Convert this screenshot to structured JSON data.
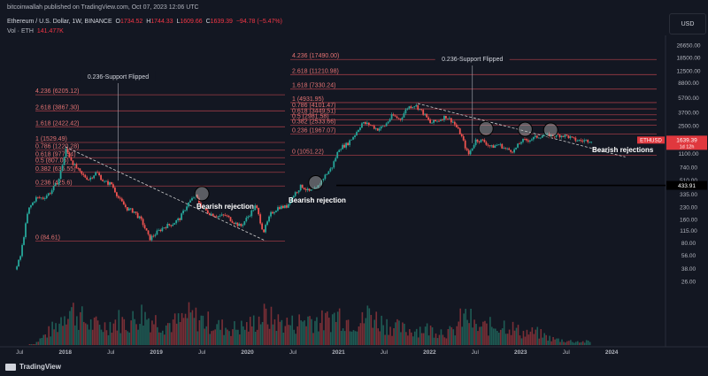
{
  "header": {
    "publish_line": "bitcoinwallah published on TradingView.com, Oct 07, 2023 12:06 UTC",
    "symbol": "Ethereum / U.S. Dollar, 1W, BINANCE",
    "ohlc": {
      "o_label": "O",
      "o": "1734.52",
      "h_label": "H",
      "h": "1744.33",
      "l_label": "L",
      "l": "1609.66",
      "c_label": "C",
      "c": "1639.39",
      "change": "−94.78 (−5.47%)"
    },
    "volume_label": "Vol · ETH",
    "volume_value": "141.477K"
  },
  "currency_button": "USD",
  "brand": "TradingView",
  "colors": {
    "background": "#131722",
    "up": "#26a69a",
    "down": "#ef5350",
    "fib_line": "#9c3b44",
    "fib_text": "#e57373",
    "price_badge": "#e0383e",
    "level_badge": "#000000"
  },
  "chart_data": {
    "type": "candlestick",
    "symbol": "ETHUSD",
    "timeframe": "1W",
    "y_scale": "log",
    "y_ticks": [
      26650.0,
      18500.0,
      12500.0,
      8800.0,
      5700.0,
      3700.0,
      2500.0,
      1580.0,
      1100.0,
      740.0,
      510.0,
      335.0,
      230.0,
      160.0,
      115.0,
      80.0,
      56.0,
      38.0,
      26.0
    ],
    "x_ticks": [
      "Jul",
      "2018",
      "Jul",
      "2019",
      "Jul",
      "2020",
      "Jul",
      "2021",
      "Jul",
      "2022",
      "Jul",
      "2023",
      "Jul",
      "2024"
    ],
    "price_series": [
      {
        "date": "2017-06",
        "value": 28
      },
      {
        "date": "2017-07",
        "value": 55
      },
      {
        "date": "2017-08",
        "value": 210
      },
      {
        "date": "2017-09",
        "value": 300
      },
      {
        "date": "2017-10",
        "value": 300
      },
      {
        "date": "2017-11",
        "value": 360
      },
      {
        "date": "2017-12",
        "value": 500
      },
      {
        "date": "2018-01",
        "value": 1250
      },
      {
        "date": "2018-02",
        "value": 800
      },
      {
        "date": "2018-03",
        "value": 600
      },
      {
        "date": "2018-04",
        "value": 520
      },
      {
        "date": "2018-05",
        "value": 640
      },
      {
        "date": "2018-06",
        "value": 480
      },
      {
        "date": "2018-07",
        "value": 450
      },
      {
        "date": "2018-08",
        "value": 290
      },
      {
        "date": "2018-09",
        "value": 220
      },
      {
        "date": "2018-10",
        "value": 200
      },
      {
        "date": "2018-11",
        "value": 150
      },
      {
        "date": "2018-12",
        "value": 90
      },
      {
        "date": "2019-01",
        "value": 110
      },
      {
        "date": "2019-02",
        "value": 130
      },
      {
        "date": "2019-03",
        "value": 140
      },
      {
        "date": "2019-04",
        "value": 165
      },
      {
        "date": "2019-05",
        "value": 250
      },
      {
        "date": "2019-06",
        "value": 320
      },
      {
        "date": "2019-07",
        "value": 220
      },
      {
        "date": "2019-08",
        "value": 190
      },
      {
        "date": "2019-09",
        "value": 175
      },
      {
        "date": "2019-10",
        "value": 180
      },
      {
        "date": "2019-11",
        "value": 150
      },
      {
        "date": "2019-12",
        "value": 130
      },
      {
        "date": "2020-01",
        "value": 175
      },
      {
        "date": "2020-02",
        "value": 240
      },
      {
        "date": "2020-03",
        "value": 110
      },
      {
        "date": "2020-04",
        "value": 190
      },
      {
        "date": "2020-05",
        "value": 230
      },
      {
        "date": "2020-06",
        "value": 230
      },
      {
        "date": "2020-07",
        "value": 330
      },
      {
        "date": "2020-08",
        "value": 430
      },
      {
        "date": "2020-09",
        "value": 360
      },
      {
        "date": "2020-10",
        "value": 390
      },
      {
        "date": "2020-11",
        "value": 560
      },
      {
        "date": "2020-12",
        "value": 730
      },
      {
        "date": "2021-01",
        "value": 1300
      },
      {
        "date": "2021-02",
        "value": 1450
      },
      {
        "date": "2021-03",
        "value": 1900
      },
      {
        "date": "2021-04",
        "value": 2700
      },
      {
        "date": "2021-05",
        "value": 2600
      },
      {
        "date": "2021-06",
        "value": 2250
      },
      {
        "date": "2021-07",
        "value": 2500
      },
      {
        "date": "2021-08",
        "value": 3400
      },
      {
        "date": "2021-09",
        "value": 3000
      },
      {
        "date": "2021-10",
        "value": 4300
      },
      {
        "date": "2021-11",
        "value": 4600
      },
      {
        "date": "2021-12",
        "value": 3700
      },
      {
        "date": "2022-01",
        "value": 2700
      },
      {
        "date": "2022-02",
        "value": 2900
      },
      {
        "date": "2022-03",
        "value": 3300
      },
      {
        "date": "2022-04",
        "value": 2800
      },
      {
        "date": "2022-05",
        "value": 1950
      },
      {
        "date": "2022-06",
        "value": 1050
      },
      {
        "date": "2022-07",
        "value": 1650
      },
      {
        "date": "2022-08",
        "value": 1600
      },
      {
        "date": "2022-09",
        "value": 1330
      },
      {
        "date": "2022-10",
        "value": 1450
      },
      {
        "date": "2022-11",
        "value": 1250
      },
      {
        "date": "2022-12",
        "value": 1200
      },
      {
        "date": "2023-01",
        "value": 1600
      },
      {
        "date": "2023-02",
        "value": 1650
      },
      {
        "date": "2023-03",
        "value": 1800
      },
      {
        "date": "2023-04",
        "value": 1900
      },
      {
        "date": "2023-05",
        "value": 1850
      },
      {
        "date": "2023-06",
        "value": 1900
      },
      {
        "date": "2023-07",
        "value": 1850
      },
      {
        "date": "2023-08",
        "value": 1650
      },
      {
        "date": "2023-09",
        "value": 1600
      },
      {
        "date": "2023-10",
        "value": 1639.39
      }
    ],
    "volume_series": [
      {
        "date": "2017-10",
        "value": 0.2
      },
      {
        "date": "2017-12",
        "value": 0.5
      },
      {
        "date": "2018-01",
        "value": 0.9
      },
      {
        "date": "2018-02",
        "value": 0.8
      },
      {
        "date": "2018-04",
        "value": 0.5
      },
      {
        "date": "2018-06",
        "value": 0.45
      },
      {
        "date": "2018-08",
        "value": 0.6
      },
      {
        "date": "2018-09",
        "value": 0.5
      },
      {
        "date": "2018-11",
        "value": 0.75
      },
      {
        "date": "2018-12",
        "value": 0.65
      },
      {
        "date": "2019-02",
        "value": 0.5
      },
      {
        "date": "2019-04",
        "value": 0.55
      },
      {
        "date": "2019-05",
        "value": 0.7
      },
      {
        "date": "2019-07",
        "value": 0.6
      },
      {
        "date": "2019-09",
        "value": 0.45
      },
      {
        "date": "2019-11",
        "value": 0.4
      },
      {
        "date": "2020-01",
        "value": 0.45
      },
      {
        "date": "2020-03",
        "value": 0.7
      },
      {
        "date": "2020-05",
        "value": 0.55
      },
      {
        "date": "2020-07",
        "value": 0.5
      },
      {
        "date": "2020-09",
        "value": 0.65
      },
      {
        "date": "2020-11",
        "value": 0.55
      },
      {
        "date": "2021-01",
        "value": 0.75
      },
      {
        "date": "2021-02",
        "value": 0.6
      },
      {
        "date": "2021-04",
        "value": 0.55
      },
      {
        "date": "2021-05",
        "value": 0.8
      },
      {
        "date": "2021-06",
        "value": 0.6
      },
      {
        "date": "2021-08",
        "value": 0.45
      },
      {
        "date": "2021-10",
        "value": 0.35
      },
      {
        "date": "2021-12",
        "value": 0.4
      },
      {
        "date": "2022-02",
        "value": 0.35
      },
      {
        "date": "2022-04",
        "value": 0.3
      },
      {
        "date": "2022-05",
        "value": 0.6
      },
      {
        "date": "2022-06",
        "value": 0.7
      },
      {
        "date": "2022-07",
        "value": 0.4
      },
      {
        "date": "2022-09",
        "value": 0.45
      },
      {
        "date": "2022-11",
        "value": 0.5
      },
      {
        "date": "2023-01",
        "value": 0.3
      },
      {
        "date": "2023-03",
        "value": 0.3
      },
      {
        "date": "2023-05",
        "value": 0.15
      },
      {
        "date": "2023-07",
        "value": 0.1
      },
      {
        "date": "2023-09",
        "value": 0.08
      }
    ],
    "fib_2018": [
      {
        "label": "4.236 (6205.12)",
        "value": 6205.12
      },
      {
        "label": "2.618 (3867.30)",
        "value": 3867.3
      },
      {
        "label": "1.618 (2422.42)",
        "value": 2422.42
      },
      {
        "label": "1 (1529.49)",
        "value": 1529.49
      },
      {
        "label": "0.786 (1220.28)",
        "value": 1220.28
      },
      {
        "label": "0.618 (977.54)",
        "value": 977.54
      },
      {
        "label": "0.5 (807.05)",
        "value": 807.05
      },
      {
        "label": "0.382 (636.55)",
        "value": 636.55
      },
      {
        "label": "0.236 (425.6)",
        "value": 425.6
      },
      {
        "label": "0 (84.61)",
        "value": 84.61
      }
    ],
    "fib_2021": [
      {
        "label": "4.236 (17490.00)",
        "value": 17490.0
      },
      {
        "label": "2.618 (11210.98)",
        "value": 11210.98
      },
      {
        "label": "1.618 (7330.24)",
        "value": 7330.24
      },
      {
        "label": "1 (4931.95)",
        "value": 4931.95
      },
      {
        "label": "0.786 (4101.47)",
        "value": 4101.47
      },
      {
        "label": "0.618 (3449.51)",
        "value": 3449.51
      },
      {
        "label": "0.5 (2981.58)",
        "value": 2981.58
      },
      {
        "label": "0.382 (2533.66)",
        "value": 2533.66
      },
      {
        "label": "0.236 (1967.07)",
        "value": 1967.07
      },
      {
        "label": "0 (1051.22)",
        "value": 1051.22
      }
    ],
    "support_flipped_labels": [
      "0.236-Support Flipped",
      "0.236-Support Flipped"
    ],
    "annotations": [
      "Bearish rejection",
      "Bearish rejection",
      "Bearish rejections"
    ],
    "horizontal_level": {
      "value": 433.91,
      "label": "433.91"
    },
    "last_price": {
      "symbol": "ETHUSD",
      "value": "1639.39",
      "countdown": "1d 12h"
    }
  }
}
